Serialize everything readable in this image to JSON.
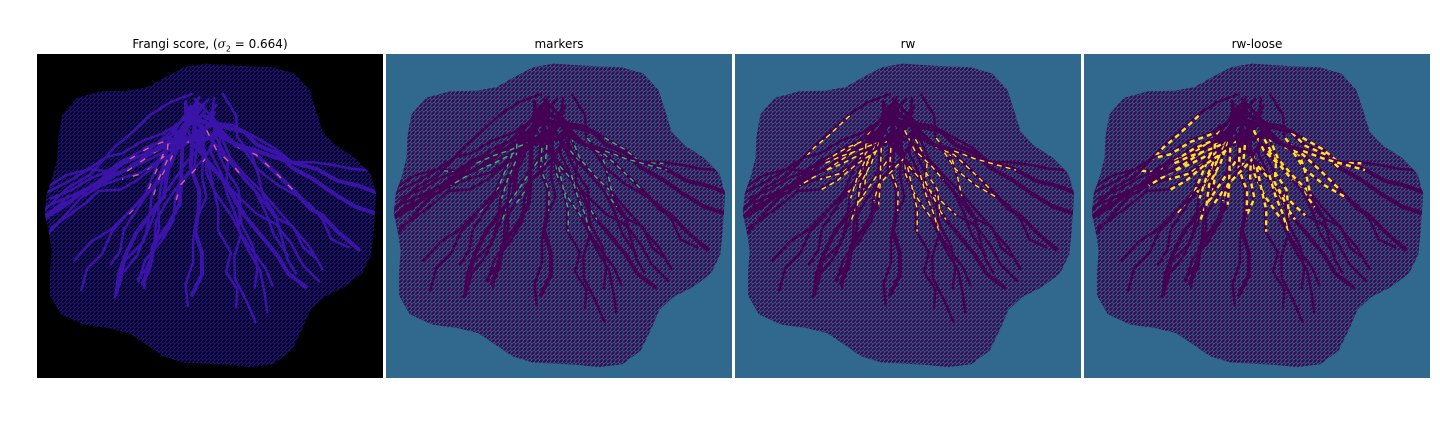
{
  "figure": {
    "panels": [
      {
        "title_prefix": "Frangi score, (",
        "title_symbol": "σ",
        "title_subscript": "2",
        "title_suffix": " = 0.664)",
        "colormap": "magma-like",
        "background": "#000000",
        "vessel_color": "#3a14a8",
        "highlight_color": "#e0609a"
      },
      {
        "title": "markers",
        "colormap": "viridis",
        "background": "#31688e",
        "vessel_color": "#440154",
        "highlight_color": "#35b779"
      },
      {
        "title": "rw",
        "colormap": "viridis",
        "background": "#31688e",
        "vessel_color": "#440154",
        "highlight_color": "#fde725"
      },
      {
        "title": "rw-loose",
        "colormap": "viridis",
        "background": "#31688e",
        "vessel_color": "#440154",
        "highlight_color": "#fde725"
      }
    ]
  }
}
